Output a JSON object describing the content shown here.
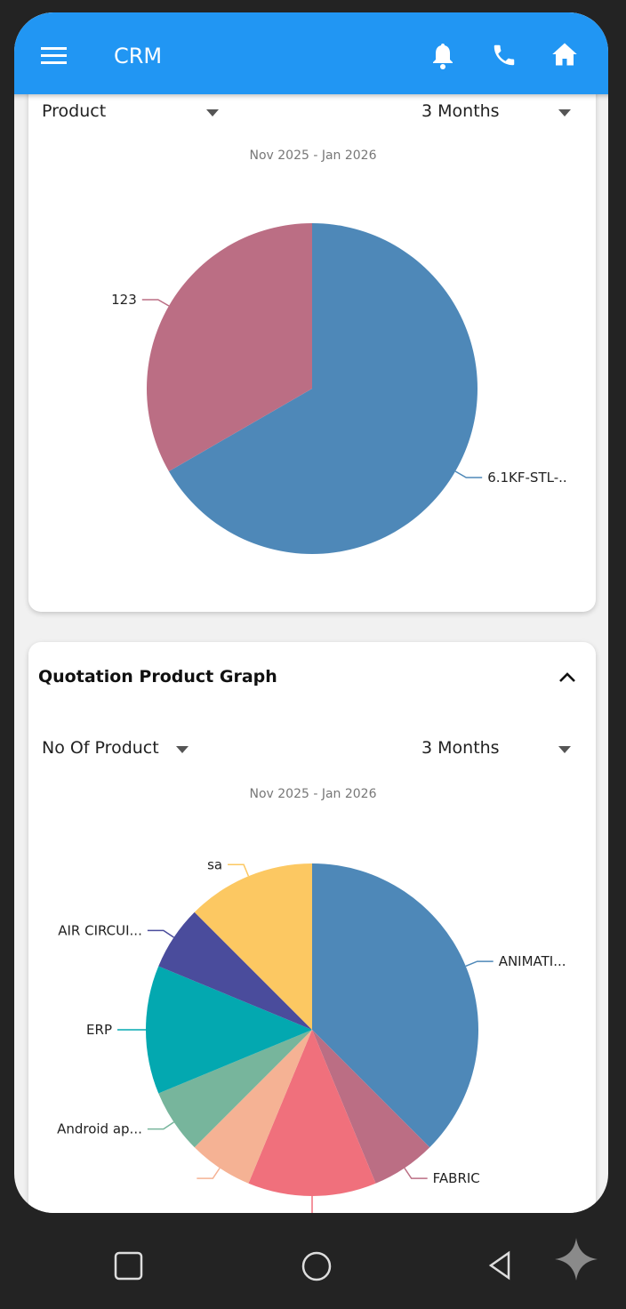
{
  "app_bar": {
    "title": "CRM",
    "icons": [
      "menu-icon",
      "bell-icon",
      "phone-icon",
      "home-icon"
    ],
    "color": "#2196f3"
  },
  "card1": {
    "dropdown_left": "Product",
    "dropdown_right": "3 Months",
    "date_range": "Nov 2025 - Jan 2026"
  },
  "card2": {
    "title": "Quotation Product Graph",
    "dropdown_left": "No Of Product",
    "dropdown_right": "3 Months",
    "date_range": "Nov 2025 - Jan 2026"
  },
  "chart_data": [
    {
      "type": "pie",
      "categories": [
        "6.1KF-STL-..",
        "123"
      ],
      "values": [
        2,
        1
      ],
      "colors": [
        "#4e88b8",
        "#bb6e84"
      ]
    },
    {
      "type": "pie",
      "categories": [
        "ANIMATI...",
        "FABRIC",
        "",
        "",
        "Android ap...",
        "ERP",
        "AIR CIRCUI...",
        "sa"
      ],
      "values": [
        6,
        1,
        2,
        1,
        1,
        2,
        1,
        2
      ],
      "colors": [
        "#4e88b8",
        "#bb6e84",
        "#f0707c",
        "#f5b294",
        "#77b59c",
        "#03a8b0",
        "#4a4c9c",
        "#fcc862"
      ]
    }
  ],
  "system_nav": {
    "icons": [
      "recents-icon",
      "home-circle-icon",
      "back-icon",
      "sparkle-icon"
    ]
  }
}
